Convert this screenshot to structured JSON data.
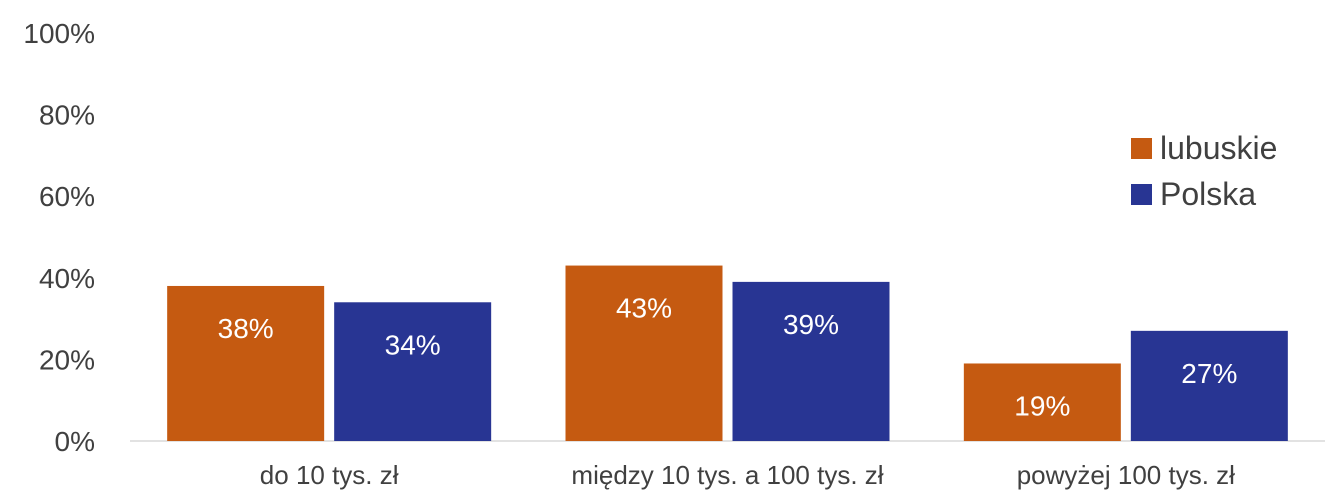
{
  "chart_data": {
    "type": "bar",
    "categories": [
      "do 10 tys. zł",
      "między 10 tys. a 100 tys. zł",
      "powyżej 100 tys. zł"
    ],
    "series": [
      {
        "name": "lubuskie",
        "values": [
          38,
          43,
          19
        ],
        "labels": [
          "38%",
          "43%",
          "19%"
        ],
        "color": "#c55a11"
      },
      {
        "name": "Polska",
        "values": [
          34,
          39,
          27
        ],
        "labels": [
          "34%",
          "39%",
          "27%"
        ],
        "color": "#283593"
      }
    ],
    "ylim": [
      0,
      100
    ],
    "yticks": [
      "0%",
      "20%",
      "40%",
      "60%",
      "80%",
      "100%"
    ],
    "grid": false,
    "legend": "right",
    "title": "",
    "xlabel": "",
    "ylabel": ""
  }
}
